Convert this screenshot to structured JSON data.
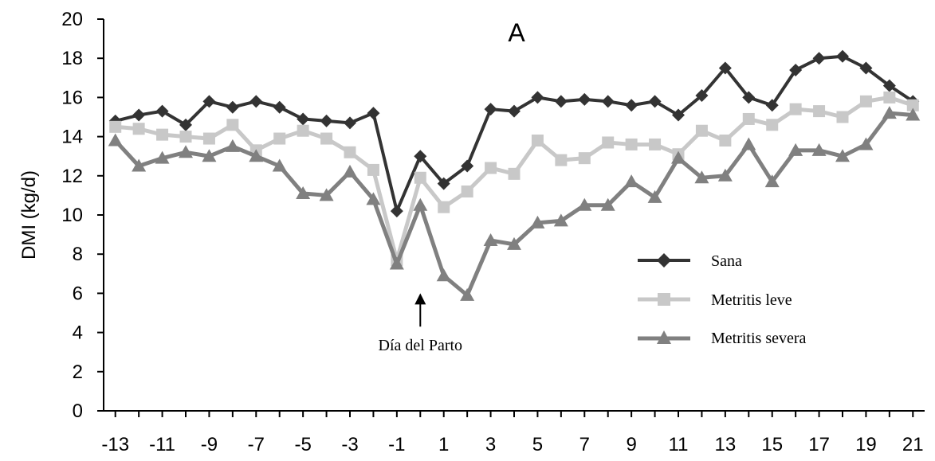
{
  "chart_data": {
    "type": "line",
    "title": "A",
    "xlabel": "",
    "ylabel": "DMI (kg/d)",
    "xlim": [
      -13,
      21
    ],
    "ylim": [
      0,
      20
    ],
    "yticks": [
      0,
      2,
      4,
      6,
      8,
      10,
      12,
      14,
      16,
      18,
      20
    ],
    "xticks": [
      -13,
      -11,
      -9,
      -7,
      -5,
      -3,
      -1,
      1,
      3,
      5,
      7,
      9,
      11,
      13,
      15,
      17,
      19,
      21
    ],
    "grid": false,
    "legend_position": "right",
    "x": [
      -13,
      -12,
      -11,
      -10,
      -9,
      -8,
      -7,
      -6,
      -5,
      -4,
      -3,
      -2,
      -1,
      0,
      1,
      2,
      3,
      4,
      5,
      6,
      7,
      8,
      9,
      10,
      11,
      12,
      13,
      14,
      15,
      16,
      17,
      18,
      19,
      20,
      21
    ],
    "series": [
      {
        "name": "Sana",
        "color": "#333333",
        "marker": "diamond",
        "values": [
          14.8,
          15.1,
          15.3,
          14.6,
          15.8,
          15.5,
          15.8,
          15.5,
          14.9,
          14.8,
          14.7,
          15.2,
          10.2,
          13.0,
          11.6,
          12.5,
          15.4,
          15.3,
          16.0,
          15.8,
          15.9,
          15.8,
          15.6,
          15.8,
          15.1,
          16.1,
          17.5,
          16.0,
          15.6,
          17.4,
          18.0,
          18.1,
          17.5,
          16.6,
          15.8
        ]
      },
      {
        "name": "Metritis leve",
        "color": "#c8c8c8",
        "marker": "square",
        "values": [
          14.5,
          14.4,
          14.1,
          14.0,
          13.9,
          14.6,
          13.3,
          13.9,
          14.3,
          13.9,
          13.2,
          12.3,
          7.7,
          11.9,
          10.4,
          11.2,
          12.4,
          12.1,
          13.8,
          12.8,
          12.9,
          13.7,
          13.6,
          13.6,
          13.1,
          14.3,
          13.8,
          14.9,
          14.6,
          15.4,
          15.3,
          15.0,
          15.8,
          16.0,
          15.6
        ]
      },
      {
        "name": "Metritis severa",
        "color": "#808080",
        "marker": "triangle",
        "values": [
          13.8,
          12.5,
          12.9,
          13.2,
          13.0,
          13.5,
          13.0,
          12.5,
          11.1,
          11.0,
          12.2,
          10.8,
          7.5,
          10.5,
          6.9,
          5.9,
          8.7,
          8.5,
          9.6,
          9.7,
          10.5,
          10.5,
          11.7,
          10.9,
          12.9,
          11.9,
          12.0,
          13.6,
          11.7,
          13.3,
          13.3,
          13.0,
          13.6,
          15.2,
          15.1
        ]
      }
    ],
    "annotation": {
      "text": "Día del Parto",
      "x": 0,
      "arrow_to_y": 6.0,
      "arrow_from_y": 4.3
    }
  }
}
